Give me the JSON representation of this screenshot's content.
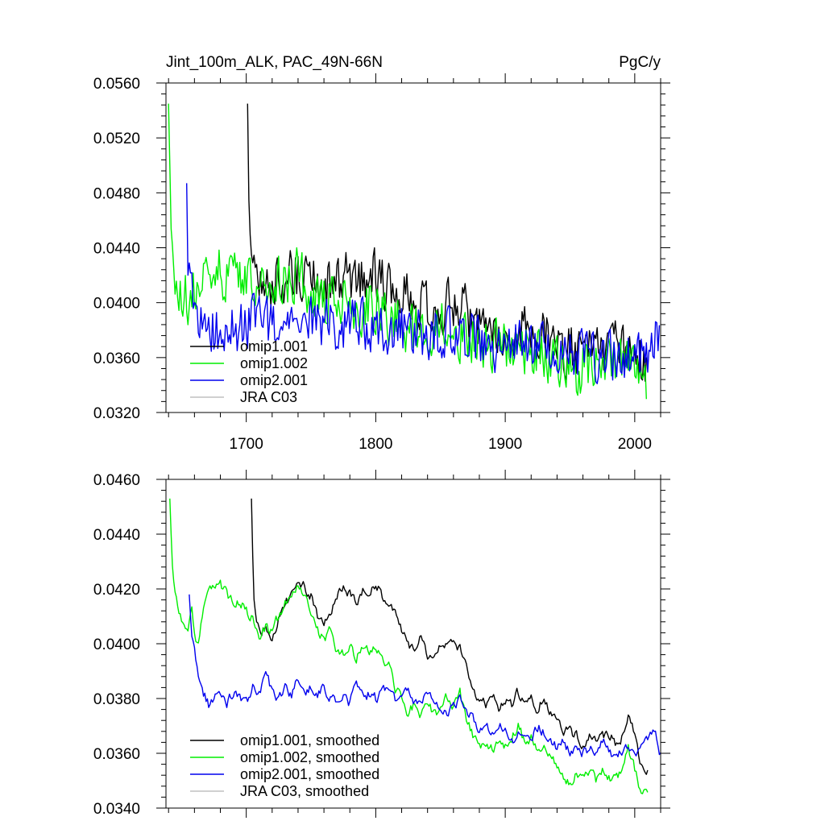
{
  "chart_data": [
    {
      "type": "line",
      "title_left": "Jint_100m_ALK, PAC_49N-66N",
      "title_right": "PgC/y",
      "xlim": [
        1638,
        2020
      ],
      "ylim": [
        0.032,
        0.056
      ],
      "yticks": [
        0.032,
        0.036,
        0.04,
        0.044,
        0.048,
        0.052,
        0.056
      ],
      "ytick_labels": [
        "0.0320",
        "0.0360",
        "0.0400",
        "0.0440",
        "0.0480",
        "0.0520",
        "0.0560"
      ],
      "xticks": [
        1700,
        1800,
        1900,
        2000
      ],
      "xtick_labels": [
        "1700",
        "1800",
        "1900",
        "2000"
      ],
      "legend_position": "bottom-left",
      "series": [
        {
          "name": "omip1.001",
          "color": "#000000",
          "style": "noisy",
          "x": [
            1701,
            1702,
            1703,
            1705,
            1707,
            1710,
            1720,
            1730,
            1740,
            1750,
            1760,
            1770,
            1780,
            1790,
            1800,
            1810,
            1820,
            1830,
            1840,
            1850,
            1860,
            1870,
            1880,
            1890,
            1900,
            1910,
            1920,
            1930,
            1940,
            1950,
            1960,
            1970,
            1980,
            1990,
            2000,
            2009
          ],
          "y": [
            0.0545,
            0.0475,
            0.0455,
            0.0425,
            0.0418,
            0.041,
            0.0412,
            0.0418,
            0.042,
            0.0418,
            0.041,
            0.0415,
            0.0418,
            0.042,
            0.042,
            0.041,
            0.0405,
            0.0398,
            0.0397,
            0.0398,
            0.0398,
            0.0392,
            0.0382,
            0.038,
            0.038,
            0.038,
            0.0378,
            0.0378,
            0.0368,
            0.0365,
            0.0365,
            0.0362,
            0.0365,
            0.0368,
            0.036,
            0.0355
          ]
        },
        {
          "name": "omip1.002",
          "color": "#00ee00",
          "style": "noisy",
          "x": [
            1640,
            1641,
            1643,
            1646,
            1650,
            1655,
            1660,
            1670,
            1680,
            1690,
            1700,
            1710,
            1720,
            1730,
            1740,
            1750,
            1760,
            1770,
            1780,
            1790,
            1800,
            1810,
            1820,
            1830,
            1840,
            1850,
            1860,
            1870,
            1880,
            1890,
            1900,
            1910,
            1920,
            1930,
            1940,
            1950,
            1960,
            1970,
            1980,
            1990,
            2000,
            2009
          ],
          "y": [
            0.0545,
            0.05,
            0.044,
            0.0415,
            0.041,
            0.04,
            0.0412,
            0.042,
            0.0422,
            0.0418,
            0.0412,
            0.0405,
            0.041,
            0.0418,
            0.042,
            0.041,
            0.04,
            0.04,
            0.0398,
            0.0395,
            0.0398,
            0.039,
            0.0385,
            0.038,
            0.0383,
            0.0382,
            0.038,
            0.0376,
            0.037,
            0.0368,
            0.0368,
            0.0366,
            0.0368,
            0.0362,
            0.0356,
            0.035,
            0.0352,
            0.0352,
            0.0352,
            0.0356,
            0.0352,
            0.0344
          ]
        },
        {
          "name": "omip2.001",
          "color": "#0000ee",
          "style": "noisy",
          "x": [
            1654,
            1655,
            1657,
            1660,
            1665,
            1670,
            1680,
            1690,
            1700,
            1710,
            1720,
            1730,
            1740,
            1750,
            1760,
            1770,
            1780,
            1790,
            1800,
            1810,
            1820,
            1830,
            1840,
            1850,
            1860,
            1870,
            1880,
            1890,
            1900,
            1910,
            1920,
            1930,
            1940,
            1950,
            1960,
            1970,
            1980,
            1990,
            2000,
            2010,
            2019
          ],
          "y": [
            0.0487,
            0.042,
            0.0402,
            0.0395,
            0.0385,
            0.038,
            0.038,
            0.038,
            0.0385,
            0.0385,
            0.0382,
            0.0385,
            0.0385,
            0.0385,
            0.0382,
            0.0384,
            0.0385,
            0.0382,
            0.038,
            0.0382,
            0.038,
            0.038,
            0.0378,
            0.0378,
            0.0378,
            0.0375,
            0.0372,
            0.037,
            0.037,
            0.037,
            0.0368,
            0.0366,
            0.0365,
            0.0363,
            0.0362,
            0.0362,
            0.0362,
            0.036,
            0.0362,
            0.0363,
            0.0378
          ]
        },
        {
          "name": "JRA C03",
          "color": "#c0c0c0",
          "style": "none",
          "x": [],
          "y": []
        }
      ]
    },
    {
      "type": "line",
      "xlim": [
        1638,
        2020
      ],
      "ylim": [
        0.034,
        0.046
      ],
      "yticks": [
        0.034,
        0.036,
        0.038,
        0.04,
        0.042,
        0.044,
        0.046
      ],
      "ytick_labels": [
        "0.0340",
        "0.0360",
        "0.0380",
        "0.0400",
        "0.0420",
        "0.0440",
        "0.0460"
      ],
      "xticks": [
        1700,
        1800,
        1900,
        2000
      ],
      "xtick_labels": [],
      "legend_position": "bottom-left",
      "series": [
        {
          "name": "omip1.001, smoothed",
          "color": "#000000",
          "style": "smooth",
          "x": [
            1704,
            1705,
            1706,
            1708,
            1710,
            1712,
            1715,
            1718,
            1720,
            1722,
            1725,
            1730,
            1735,
            1740,
            1745,
            1750,
            1755,
            1760,
            1765,
            1770,
            1775,
            1780,
            1785,
            1790,
            1795,
            1800,
            1805,
            1810,
            1815,
            1820,
            1825,
            1830,
            1835,
            1840,
            1845,
            1850,
            1855,
            1860,
            1865,
            1870,
            1875,
            1880,
            1885,
            1890,
            1895,
            1900,
            1905,
            1910,
            1915,
            1920,
            1925,
            1930,
            1935,
            1940,
            1945,
            1950,
            1955,
            1960,
            1965,
            1970,
            1975,
            1980,
            1985,
            1990,
            1995,
            2000,
            2005,
            2010
          ],
          "y": [
            0.0453,
            0.0432,
            0.0418,
            0.041,
            0.0406,
            0.0404,
            0.0407,
            0.0402,
            0.04,
            0.0405,
            0.041,
            0.0415,
            0.0418,
            0.042,
            0.0421,
            0.0418,
            0.041,
            0.0408,
            0.0412,
            0.0418,
            0.042,
            0.0418,
            0.0415,
            0.042,
            0.042,
            0.0422,
            0.0418,
            0.0414,
            0.041,
            0.0405,
            0.04,
            0.0398,
            0.0402,
            0.0395,
            0.0395,
            0.04,
            0.0398,
            0.04,
            0.0398,
            0.0392,
            0.0384,
            0.038,
            0.0378,
            0.0382,
            0.0376,
            0.038,
            0.0378,
            0.0382,
            0.0378,
            0.038,
            0.0376,
            0.0382,
            0.0375,
            0.0372,
            0.0368,
            0.0368,
            0.0366,
            0.0364,
            0.0366,
            0.0364,
            0.0366,
            0.0367,
            0.0364,
            0.0366,
            0.0374,
            0.0366,
            0.0356,
            0.0354
          ]
        },
        {
          "name": "omip1.002, smoothed",
          "color": "#00ee00",
          "style": "smooth",
          "x": [
            1641,
            1642,
            1643,
            1645,
            1648,
            1650,
            1652,
            1655,
            1658,
            1660,
            1663,
            1665,
            1668,
            1672,
            1676,
            1680,
            1685,
            1690,
            1695,
            1700,
            1705,
            1710,
            1715,
            1720,
            1725,
            1730,
            1735,
            1740,
            1745,
            1750,
            1755,
            1760,
            1765,
            1770,
            1775,
            1780,
            1785,
            1790,
            1795,
            1800,
            1805,
            1810,
            1815,
            1820,
            1825,
            1830,
            1835,
            1840,
            1845,
            1850,
            1855,
            1860,
            1865,
            1870,
            1875,
            1880,
            1885,
            1890,
            1895,
            1900,
            1905,
            1910,
            1915,
            1920,
            1925,
            1930,
            1935,
            1940,
            1945,
            1950,
            1955,
            1960,
            1965,
            1970,
            1975,
            1980,
            1985,
            1990,
            1995,
            2000,
            2005,
            2010
          ],
          "y": [
            0.0453,
            0.044,
            0.043,
            0.0418,
            0.041,
            0.0408,
            0.0408,
            0.0406,
            0.0412,
            0.0405,
            0.0399,
            0.0408,
            0.0416,
            0.0419,
            0.042,
            0.0422,
            0.0418,
            0.0415,
            0.0416,
            0.0412,
            0.041,
            0.0404,
            0.0406,
            0.0404,
            0.041,
            0.0415,
            0.0418,
            0.0421,
            0.0419,
            0.041,
            0.0405,
            0.0402,
            0.0405,
            0.0398,
            0.0396,
            0.0399,
            0.0395,
            0.04,
            0.0398,
            0.04,
            0.0396,
            0.0392,
            0.0384,
            0.038,
            0.0375,
            0.0378,
            0.0374,
            0.0378,
            0.0375,
            0.0376,
            0.038,
            0.0378,
            0.0382,
            0.0372,
            0.0366,
            0.0362,
            0.0364,
            0.0362,
            0.0364,
            0.0362,
            0.0366,
            0.037,
            0.0364,
            0.0365,
            0.0362,
            0.0362,
            0.0358,
            0.0355,
            0.0352,
            0.0348,
            0.0352,
            0.035,
            0.0352,
            0.035,
            0.0354,
            0.0352,
            0.035,
            0.0354,
            0.0362,
            0.0354,
            0.0346,
            0.0344
          ]
        },
        {
          "name": "omip2.001, smoothed",
          "color": "#0000ee",
          "style": "smooth",
          "x": [
            1656,
            1657,
            1658,
            1659,
            1660,
            1662,
            1665,
            1668,
            1672,
            1675,
            1680,
            1685,
            1690,
            1695,
            1700,
            1705,
            1710,
            1715,
            1720,
            1725,
            1730,
            1735,
            1740,
            1745,
            1750,
            1755,
            1760,
            1765,
            1770,
            1775,
            1780,
            1785,
            1790,
            1795,
            1800,
            1805,
            1810,
            1815,
            1820,
            1825,
            1830,
            1835,
            1840,
            1845,
            1850,
            1855,
            1860,
            1865,
            1870,
            1875,
            1880,
            1885,
            1890,
            1895,
            1900,
            1905,
            1910,
            1915,
            1920,
            1925,
            1930,
            1935,
            1940,
            1945,
            1950,
            1955,
            1960,
            1965,
            1970,
            1975,
            1980,
            1985,
            1990,
            1995,
            2000,
            2005,
            2010,
            2015,
            2020
          ],
          "y": [
            0.0418,
            0.041,
            0.0402,
            0.04,
            0.0398,
            0.0392,
            0.0385,
            0.0381,
            0.0377,
            0.038,
            0.0382,
            0.0378,
            0.0382,
            0.038,
            0.0378,
            0.0385,
            0.0382,
            0.039,
            0.0382,
            0.038,
            0.0384,
            0.038,
            0.0388,
            0.0382,
            0.0384,
            0.0381,
            0.0384,
            0.0381,
            0.038,
            0.0382,
            0.0378,
            0.0385,
            0.038,
            0.0382,
            0.038,
            0.0383,
            0.0384,
            0.038,
            0.0382,
            0.0385,
            0.0378,
            0.0376,
            0.0382,
            0.038,
            0.0376,
            0.0375,
            0.0378,
            0.038,
            0.0376,
            0.0372,
            0.0366,
            0.037,
            0.0368,
            0.037,
            0.0368,
            0.0364,
            0.0366,
            0.0368,
            0.0366,
            0.037,
            0.0368,
            0.0366,
            0.0362,
            0.0364,
            0.036,
            0.0362,
            0.036,
            0.0362,
            0.036,
            0.0364,
            0.0362,
            0.0358,
            0.036,
            0.0362,
            0.036,
            0.0364,
            0.0366,
            0.037,
            0.036
          ]
        },
        {
          "name": "JRA C03, smoothed",
          "color": "#c0c0c0",
          "style": "none",
          "x": [],
          "y": []
        }
      ]
    }
  ]
}
